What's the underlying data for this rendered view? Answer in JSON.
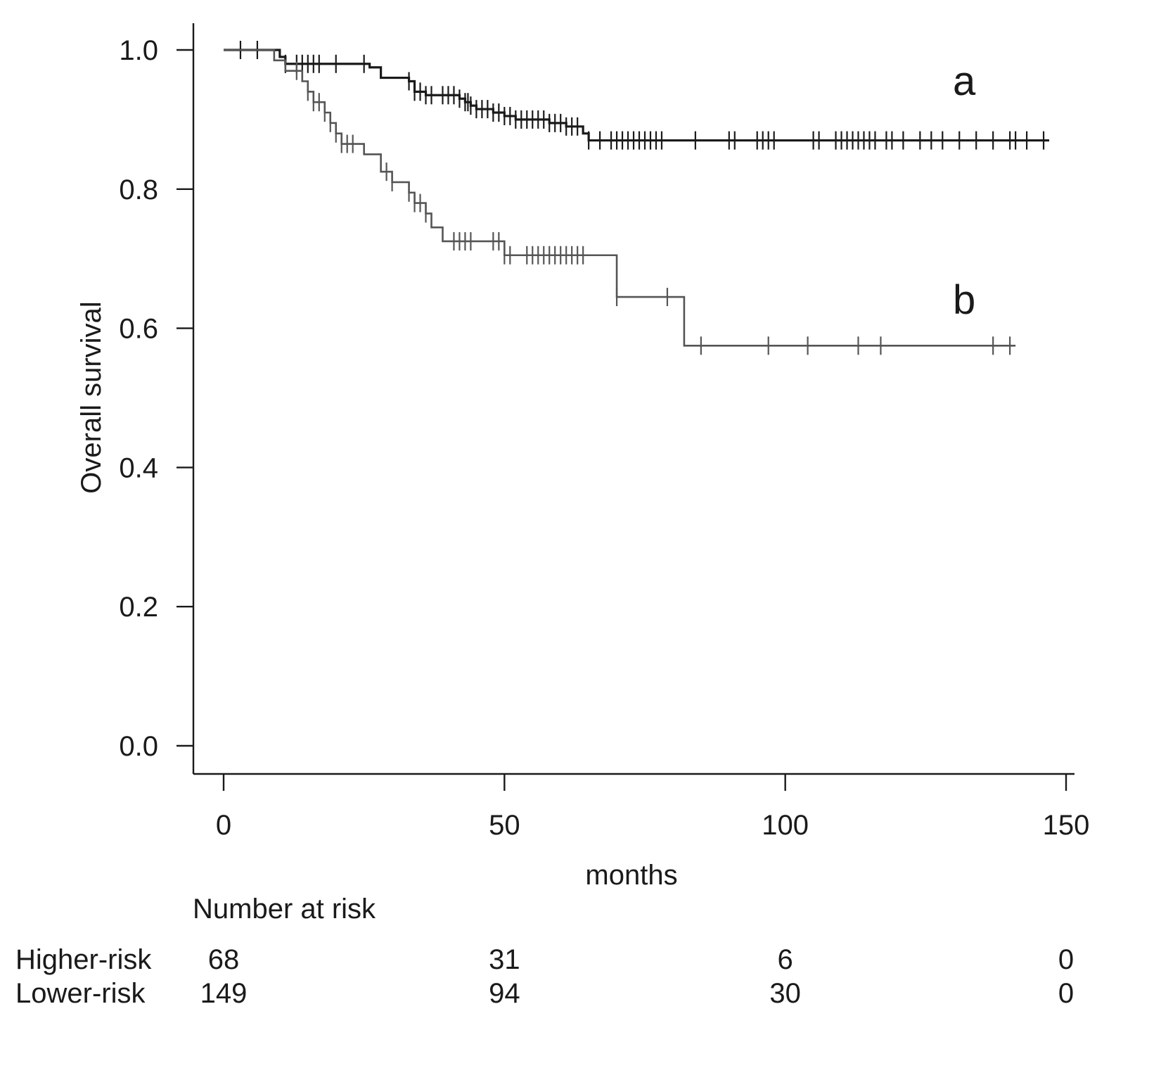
{
  "chart_data": {
    "type": "line",
    "subtype": "kaplan-meier",
    "title": "",
    "xlabel": "months",
    "ylabel": "Overall survival",
    "xlim": [
      0,
      150
    ],
    "ylim": [
      0.0,
      1.0
    ],
    "xticks": [
      0,
      50,
      100,
      150
    ],
    "xtick_labels": [
      "0",
      "50",
      "100",
      "150"
    ],
    "yticks": [
      0.0,
      0.2,
      0.4,
      0.6,
      0.8,
      1.0
    ],
    "ytick_labels": [
      "0.0",
      "0.2",
      "0.4",
      "0.6",
      "0.8",
      "1.0"
    ],
    "grid": false,
    "series": [
      {
        "name": "a",
        "label": "a",
        "color": "#1a1a1a",
        "steps": [
          [
            0,
            1.0
          ],
          [
            10,
            0.99
          ],
          [
            11,
            0.98
          ],
          [
            26,
            0.975
          ],
          [
            28,
            0.96
          ],
          [
            33,
            0.955
          ],
          [
            34,
            0.94
          ],
          [
            36,
            0.935
          ],
          [
            42,
            0.93
          ],
          [
            43,
            0.925
          ],
          [
            44,
            0.92
          ],
          [
            45,
            0.915
          ],
          [
            48,
            0.91
          ],
          [
            50,
            0.905
          ],
          [
            52,
            0.9
          ],
          [
            58,
            0.895
          ],
          [
            61,
            0.89
          ],
          [
            64,
            0.88
          ],
          [
            65,
            0.87
          ],
          [
            147,
            0.87
          ]
        ],
        "censor_times": [
          3,
          6,
          11,
          13,
          14,
          15,
          16,
          17,
          20,
          25,
          33,
          34,
          35,
          36,
          37,
          39,
          40,
          41,
          42,
          43,
          43.5,
          44,
          45,
          46,
          47,
          48,
          49,
          50,
          51,
          52,
          53,
          54,
          55,
          56,
          57,
          58,
          59,
          60,
          61,
          62,
          63,
          65,
          67,
          69,
          70,
          71,
          72,
          73,
          74,
          75,
          76,
          77,
          78,
          84,
          90,
          91,
          95,
          96,
          97,
          98,
          105,
          106,
          109,
          110,
          111,
          112,
          113,
          114,
          115,
          116,
          118,
          119,
          121,
          124,
          126,
          128,
          131,
          134,
          137,
          140,
          141,
          143,
          146
        ]
      },
      {
        "name": "b",
        "label": "b",
        "color": "#555555",
        "steps": [
          [
            0,
            1.0
          ],
          [
            9,
            0.985
          ],
          [
            11,
            0.97
          ],
          [
            14,
            0.955
          ],
          [
            15,
            0.94
          ],
          [
            16,
            0.925
          ],
          [
            18,
            0.91
          ],
          [
            19,
            0.895
          ],
          [
            20,
            0.88
          ],
          [
            21,
            0.865
          ],
          [
            25,
            0.85
          ],
          [
            28,
            0.825
          ],
          [
            30,
            0.81
          ],
          [
            33,
            0.795
          ],
          [
            34,
            0.78
          ],
          [
            36,
            0.765
          ],
          [
            37,
            0.745
          ],
          [
            39,
            0.725
          ],
          [
            50,
            0.705
          ],
          [
            70,
            0.645
          ],
          [
            82,
            0.575
          ],
          [
            141,
            0.575
          ]
        ],
        "censor_times": [
          13,
          15,
          16,
          17,
          18,
          19,
          20,
          21,
          22,
          23,
          29,
          30,
          33,
          34,
          35,
          36,
          41,
          42,
          43,
          44,
          48,
          49,
          50,
          51,
          54,
          55,
          56,
          57,
          58,
          59,
          60,
          61,
          62,
          63,
          64,
          70,
          79,
          85,
          97,
          104,
          113,
          117,
          137,
          140
        ]
      }
    ],
    "number_at_risk": {
      "title": "Number at risk",
      "time_points": [
        0,
        50,
        100,
        150
      ],
      "rows": [
        {
          "name": "Higher-risk",
          "counts": [
            "68",
            "31",
            "6",
            "0"
          ]
        },
        {
          "name": "Lower-risk",
          "counts": [
            "149",
            "94",
            "30",
            "0"
          ]
        }
      ]
    }
  }
}
